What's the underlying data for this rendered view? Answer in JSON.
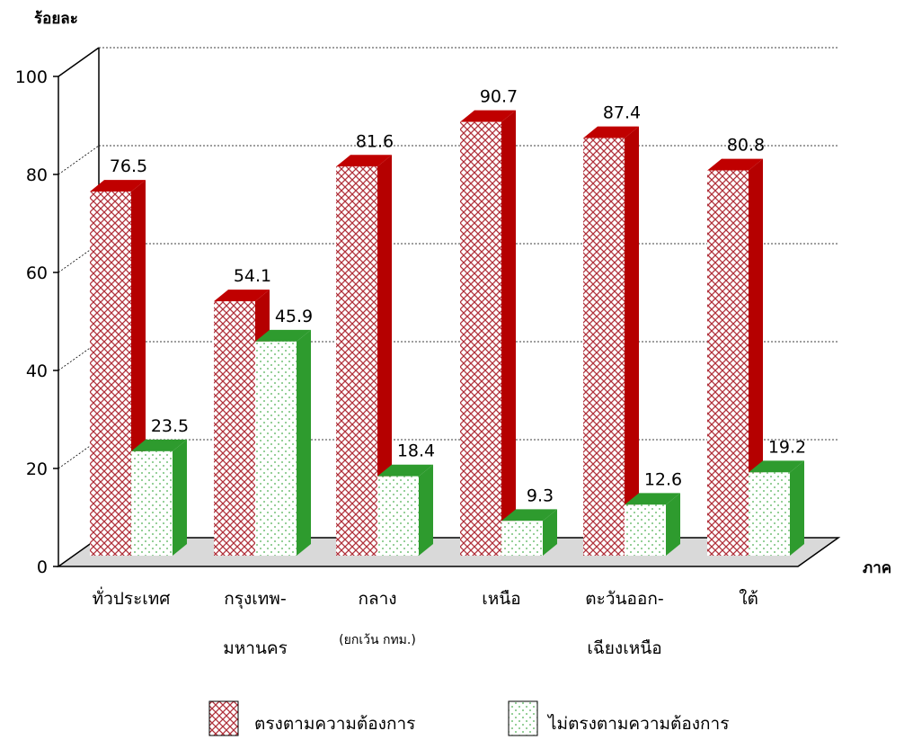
{
  "chart_data": {
    "type": "bar",
    "ylabel": "ร้อยละ",
    "xlabel": "ภาค",
    "ylim": [
      0,
      100
    ],
    "yticks": [
      0,
      20,
      40,
      60,
      80,
      100
    ],
    "grid": true,
    "legend_position": "bottom",
    "categories": [
      {
        "lines": [
          "ทั่วประเทศ"
        ],
        "note": ""
      },
      {
        "lines": [
          "กรุงเทพ-",
          "มหานคร"
        ],
        "note": ""
      },
      {
        "lines": [
          "กลาง"
        ],
        "note": "(ยกเว้น กทม.)"
      },
      {
        "lines": [
          "เหนือ"
        ],
        "note": ""
      },
      {
        "lines": [
          "ตะวันออก-",
          "เฉียงเหนือ"
        ],
        "note": ""
      },
      {
        "lines": [
          "ใต้"
        ],
        "note": ""
      }
    ],
    "series": [
      {
        "name": "ตรงตามความต้องการ",
        "values": [
          76.5,
          54.1,
          81.6,
          90.7,
          87.4,
          80.8
        ],
        "color": "#b22222",
        "side_color": "#c00000",
        "pattern": "crosshatch"
      },
      {
        "name": "ไม่ตรงตามความต้องการ",
        "values": [
          23.5,
          45.9,
          18.4,
          9.3,
          12.6,
          19.2
        ],
        "color": "#3a9a3a",
        "side_color": "#2e9b2e",
        "pattern": "dots"
      }
    ]
  }
}
